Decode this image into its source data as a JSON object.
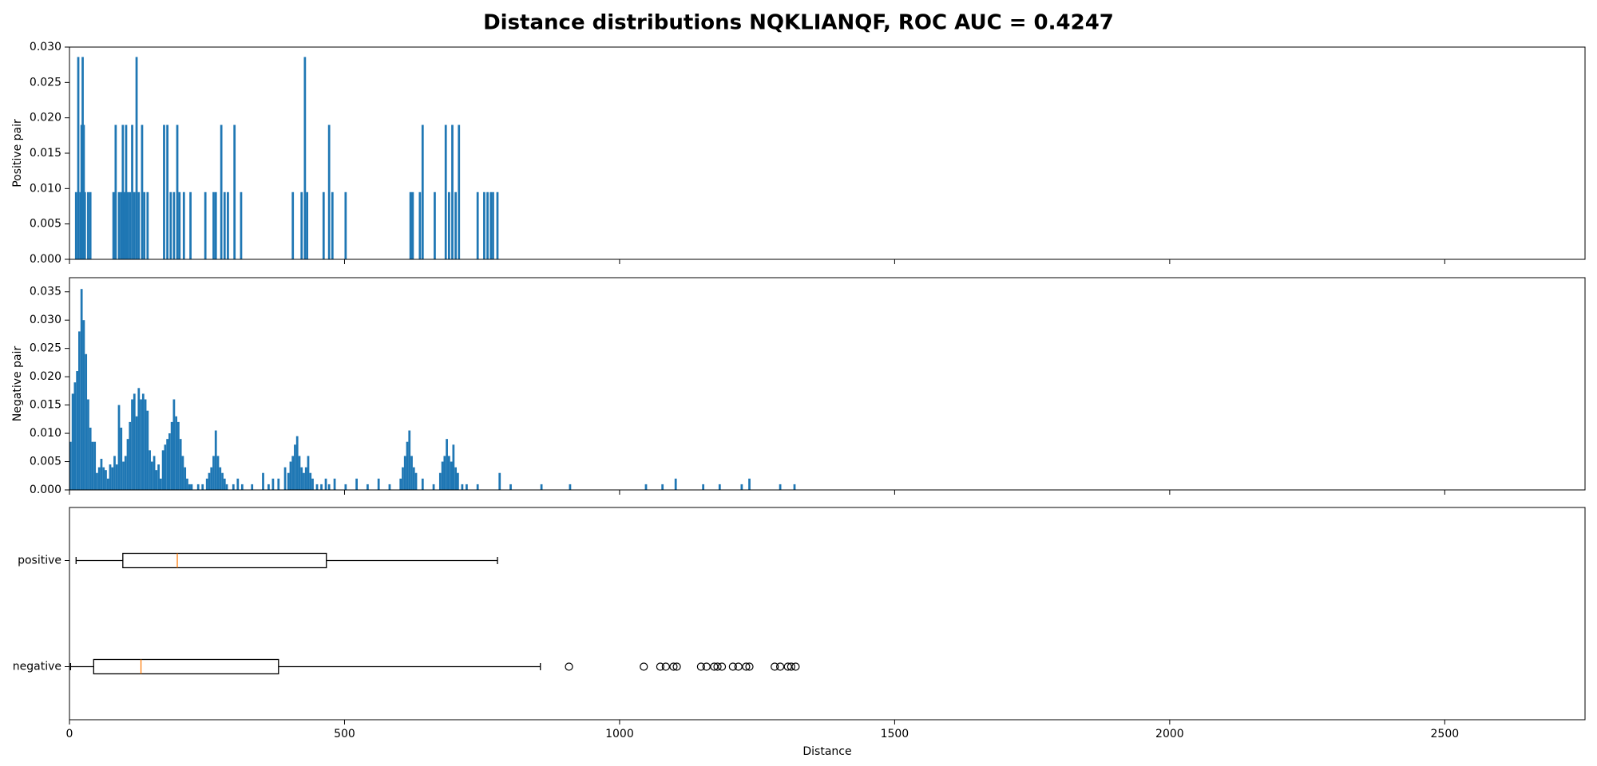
{
  "title": "Distance distributions NQKLIANQF, ROC AUC = 0.4247",
  "chart_data": [
    {
      "type": "bar",
      "ylabel": "Positive pair",
      "color": "#1f77b4",
      "bar_width": 4,
      "x": [
        10,
        14,
        18,
        20,
        22,
        24,
        26,
        32,
        36,
        78,
        82,
        88,
        92,
        95,
        98,
        101,
        104,
        108,
        112,
        116,
        120,
        124,
        130,
        134,
        140,
        170,
        176,
        182,
        188,
        194,
        198,
        206,
        218,
        245,
        260,
        264,
        274,
        280,
        286,
        298,
        310,
        404,
        420,
        426,
        430,
        460,
        470,
        476,
        500,
        618,
        622,
        635,
        640,
        662,
        682,
        688,
        694,
        700,
        706,
        740,
        752,
        758,
        764,
        768,
        776
      ],
      "values": [
        0.0095,
        0.0286,
        0.0095,
        0.019,
        0.0286,
        0.019,
        0.0095,
        0.0095,
        0.0095,
        0.0095,
        0.019,
        0.0095,
        0.0095,
        0.019,
        0.0095,
        0.019,
        0.0095,
        0.0095,
        0.019,
        0.0095,
        0.0286,
        0.0095,
        0.019,
        0.0095,
        0.0095,
        0.019,
        0.019,
        0.0095,
        0.0095,
        0.019,
        0.0095,
        0.0095,
        0.0095,
        0.0095,
        0.0095,
        0.0095,
        0.019,
        0.0095,
        0.0095,
        0.019,
        0.0095,
        0.0095,
        0.0095,
        0.0286,
        0.0095,
        0.0095,
        0.019,
        0.0095,
        0.0095,
        0.0095,
        0.0095,
        0.0095,
        0.019,
        0.0095,
        0.019,
        0.0095,
        0.019,
        0.0095,
        0.019,
        0.0095,
        0.0095,
        0.0095,
        0.0095,
        0.0095,
        0.0095
      ],
      "xlim": [
        0,
        2755
      ],
      "xticks": [
        0,
        500,
        1000,
        1500,
        2000,
        2500
      ],
      "ylim": [
        0,
        0.03
      ],
      "yticks": [
        {
          "value": 0,
          "label": "0.000"
        },
        {
          "value": 0.005,
          "label": "0.005"
        },
        {
          "value": 0.01,
          "label": "0.010"
        },
        {
          "value": 0.015,
          "label": "0.015"
        },
        {
          "value": 0.02,
          "label": "0.020"
        },
        {
          "value": 0.025,
          "label": "0.025"
        },
        {
          "value": 0.03,
          "label": "0.030"
        }
      ]
    },
    {
      "type": "bar",
      "ylabel": "Negative pair",
      "color": "#1f77b4",
      "bar_width": 4,
      "x": [
        0,
        4,
        8,
        12,
        16,
        20,
        24,
        28,
        32,
        36,
        40,
        44,
        48,
        52,
        56,
        60,
        64,
        68,
        72,
        76,
        80,
        84,
        88,
        92,
        96,
        100,
        104,
        108,
        112,
        116,
        120,
        124,
        128,
        132,
        136,
        140,
        144,
        148,
        152,
        156,
        160,
        164,
        168,
        172,
        176,
        180,
        184,
        188,
        192,
        196,
        200,
        204,
        208,
        212,
        216,
        220,
        232,
        240,
        248,
        252,
        256,
        260,
        264,
        268,
        272,
        276,
        280,
        284,
        296,
        304,
        312,
        330,
        350,
        360,
        368,
        378,
        390,
        396,
        400,
        404,
        408,
        412,
        416,
        420,
        424,
        428,
        432,
        436,
        440,
        448,
        456,
        464,
        470,
        480,
        500,
        520,
        540,
        560,
        580,
        600,
        604,
        608,
        612,
        616,
        620,
        624,
        628,
        640,
        660,
        672,
        676,
        680,
        684,
        688,
        692,
        696,
        700,
        704,
        712,
        720,
        740,
        780,
        800,
        856,
        908,
        1046,
        1076,
        1100,
        1150,
        1180,
        1220,
        1234,
        1290,
        1316
      ],
      "values": [
        0.0085,
        0.017,
        0.019,
        0.021,
        0.028,
        0.0355,
        0.03,
        0.024,
        0.016,
        0.011,
        0.0085,
        0.0085,
        0.003,
        0.004,
        0.0055,
        0.004,
        0.0035,
        0.002,
        0.0045,
        0.004,
        0.006,
        0.0045,
        0.015,
        0.011,
        0.005,
        0.006,
        0.009,
        0.012,
        0.016,
        0.017,
        0.013,
        0.018,
        0.016,
        0.017,
        0.016,
        0.014,
        0.007,
        0.005,
        0.006,
        0.0035,
        0.0045,
        0.002,
        0.007,
        0.008,
        0.009,
        0.01,
        0.012,
        0.016,
        0.013,
        0.012,
        0.009,
        0.006,
        0.004,
        0.002,
        0.001,
        0.001,
        0.001,
        0.001,
        0.002,
        0.003,
        0.004,
        0.006,
        0.0105,
        0.006,
        0.004,
        0.003,
        0.002,
        0.001,
        0.001,
        0.002,
        0.001,
        0.001,
        0.003,
        0.001,
        0.002,
        0.002,
        0.004,
        0.003,
        0.005,
        0.006,
        0.008,
        0.0095,
        0.006,
        0.004,
        0.003,
        0.004,
        0.006,
        0.003,
        0.002,
        0.001,
        0.001,
        0.002,
        0.001,
        0.002,
        0.001,
        0.002,
        0.001,
        0.002,
        0.001,
        0.002,
        0.004,
        0.006,
        0.0085,
        0.0105,
        0.006,
        0.004,
        0.003,
        0.002,
        0.001,
        0.003,
        0.005,
        0.006,
        0.009,
        0.006,
        0.005,
        0.008,
        0.004,
        0.003,
        0.001,
        0.001,
        0.001,
        0.003,
        0.001,
        0.001,
        0.001,
        0.001,
        0.001,
        0.002,
        0.001,
        0.001,
        0.001,
        0.002,
        0.001,
        0.001
      ],
      "xlim": [
        0,
        2755
      ],
      "xticks": [
        0,
        500,
        1000,
        1500,
        2000,
        2500
      ],
      "ylim": [
        0,
        0.0375
      ],
      "yticks": [
        {
          "value": 0,
          "label": "0.000"
        },
        {
          "value": 0.005,
          "label": "0.005"
        },
        {
          "value": 0.01,
          "label": "0.010"
        },
        {
          "value": 0.015,
          "label": "0.015"
        },
        {
          "value": 0.02,
          "label": "0.020"
        },
        {
          "value": 0.025,
          "label": "0.025"
        },
        {
          "value": 0.03,
          "label": "0.030"
        },
        {
          "value": 0.035,
          "label": "0.035"
        }
      ]
    },
    {
      "type": "box",
      "xlabel": "Distance",
      "color": "#000000",
      "median_color": "#ff7f0e",
      "categories": [
        "positive",
        "negative"
      ],
      "series": [
        {
          "whislo": 12,
          "q1": 97,
          "med": 196,
          "q3": 467,
          "whishi": 778,
          "fliers": []
        },
        {
          "whislo": 2,
          "q1": 44,
          "med": 130,
          "q3": 380,
          "whishi": 856,
          "fliers": [
            908,
            1044,
            1074,
            1084,
            1098,
            1104,
            1148,
            1158,
            1172,
            1178,
            1186,
            1206,
            1216,
            1230,
            1236,
            1282,
            1292,
            1306,
            1312,
            1320
          ]
        }
      ],
      "xlim": [
        0,
        2755
      ],
      "xticks": [
        0,
        500,
        1000,
        1500,
        2000,
        2500
      ]
    }
  ]
}
